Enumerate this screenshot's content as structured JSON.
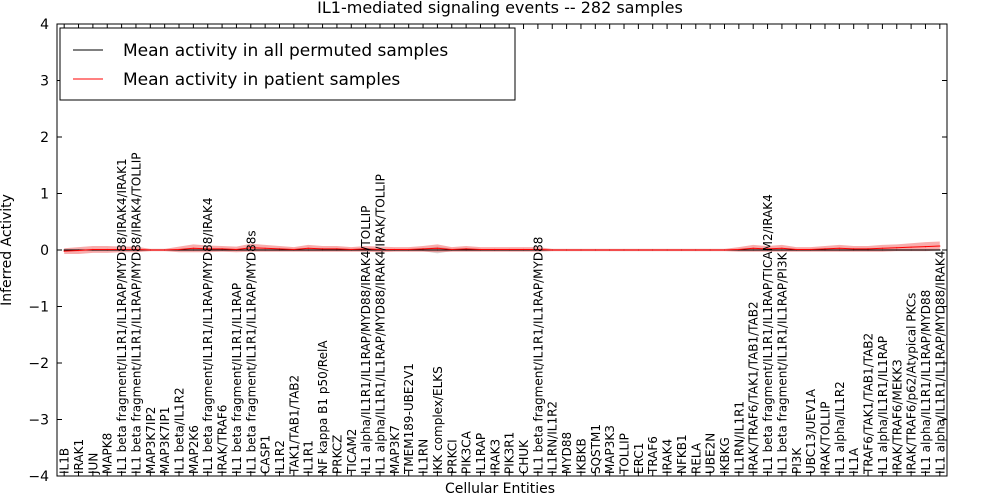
{
  "chart_data": {
    "type": "line",
    "title": "IL1-mediated signaling events -- 282 samples",
    "xlabel": "Cellular Entities",
    "ylabel": "Inferred Activity",
    "ylim": [
      -4,
      4
    ],
    "yticks": [
      -4,
      -3,
      -2,
      -1,
      0,
      1,
      2,
      3,
      4
    ],
    "ytick_labels": [
      "−4",
      "−3",
      "−2",
      "−1",
      "0",
      "1",
      "2",
      "3",
      "4"
    ],
    "legend": {
      "placement": "top-left",
      "entries": [
        {
          "label": "Mean activity in all permuted samples",
          "color": "#000000"
        },
        {
          "label": "Mean activity in patient samples",
          "color": "#ff0000"
        }
      ]
    },
    "categories": [
      "IL1B",
      "IRAK1",
      "JUN",
      "MAPK8",
      "IL1 beta fragment/IL1R1/IL1RAP/MYD88/IRAK4/IRAK1",
      "IL1 beta fragment/IL1R1/IL1RAP/MYD88/IRAK4/TOLLIP",
      "MAP3K7IP2",
      "MAP3K7IP1",
      "IL1 beta/IL1R2",
      "MAP2K6",
      "IL1 beta fragment/IL1R1/IL1RAP/MYD88/IRAK4",
      "IRAK/TRAF6",
      "IL1 beta fragment/IL1R1/IL1RAP",
      "IL1 beta fragment/IL1R1/IL1RAP/MYD88s",
      "CASP1",
      "IL1R2",
      "TAK1/TAB1/TAB2",
      "IL1R1",
      "NF kappa B1 p50/RelA",
      "PRKCZ",
      "TICAM2",
      "IL1 alpha/IL1R1/IL1RAP/MYD88/IRAK4/TOLLIP",
      "IL1 alpha/IL1R1/IL1RAP/MYD88/IRAK4/IRAK/TOLLIP",
      "MAP3K7",
      "TMEM189-UBE2V1",
      "IL1RN",
      "IKK complex/ELKS",
      "PRKCI",
      "PIK3CA",
      "IL1RAP",
      "IRAK3",
      "PIK3R1",
      "CHUK",
      "IL1 beta fragment/IL1R1/IL1RAP/MYD88",
      "IL1RN/IL1R2",
      "MYD88",
      "IKBKB",
      "SQSTM1",
      "MAP3K3",
      "TOLLIP",
      "ERC1",
      "TRAF6",
      "IRAK4",
      "NFKB1",
      "RELA",
      "UBE2N",
      "IKBKG",
      "IL1RN/IL1R1",
      "IRAK/TRAF6/TAK1/TAB1/TAB2",
      "IL1 beta fragment/IL1R1/IL1RAP/TICAM2/IRAK4",
      "IL1 beta fragment/IL1R1/IL1RAP/PI3K",
      "PI3K",
      "UBC13/UEV1A",
      "IRAK/TOLLIP",
      "IL1 alpha/IL1R2",
      "IL1A",
      "TRAF6/TAK1/TAB1/TAB2",
      "IL1 alpha/IL1R1/IL1RAP",
      "IRAK/TRAF6/MEKK3",
      "IRAK/TRAF6/p62/Atypical PKCs",
      "IL1 alpha/IL1R1/IL1RAP/MYD88",
      "IL1 alpha/IL1R1/IL1RAP/MYD88/IRAK4"
    ],
    "series": [
      {
        "name": "Mean activity in all permuted samples",
        "color": "#000000",
        "values": [
          0,
          0,
          0,
          0,
          0,
          0,
          0,
          0,
          0,
          0,
          0,
          0,
          0,
          0,
          0,
          0,
          0,
          0,
          0,
          0,
          0,
          0,
          0,
          0,
          0,
          0,
          0,
          0,
          0,
          0,
          0,
          0,
          0,
          0,
          0,
          0,
          0,
          0,
          0,
          0,
          0,
          0,
          0,
          0,
          0,
          0,
          0,
          0,
          0,
          0,
          0,
          0,
          0,
          0,
          0,
          0,
          0,
          0,
          0,
          0,
          0,
          0
        ],
        "band": [
          0.02,
          0.02,
          0.02,
          0.02,
          0.02,
          0.02,
          0.02,
          0.02,
          0.02,
          0.02,
          0.02,
          0.02,
          0.02,
          0.02,
          0.02,
          0.02,
          0.02,
          0.02,
          0.02,
          0.02,
          0.02,
          0.02,
          0.02,
          0.02,
          0.02,
          0.02,
          0.06,
          0.02,
          0.02,
          0.02,
          0.02,
          0.02,
          0.02,
          0.02,
          0.02,
          0.02,
          0.02,
          0.02,
          0.02,
          0.02,
          0.02,
          0.02,
          0.02,
          0.02,
          0.02,
          0.02,
          0.02,
          0.02,
          0.02,
          0.02,
          0.02,
          0.02,
          0.02,
          0.02,
          0.02,
          0.02,
          0.02,
          0.02,
          0.02,
          0.02,
          0.02,
          0.02
        ]
      },
      {
        "name": "Mean activity in patient samples",
        "color": "#ff0000",
        "values": [
          -0.02,
          -0.01,
          0.01,
          0.01,
          0.01,
          0.01,
          0.0,
          0.0,
          0.01,
          0.03,
          0.02,
          0.02,
          0.01,
          0.04,
          0.03,
          0.02,
          0.01,
          0.03,
          0.02,
          0.02,
          0.01,
          0.02,
          0.01,
          0.01,
          0.01,
          0.02,
          0.03,
          0.01,
          0.02,
          0.01,
          0.01,
          0.01,
          0.01,
          0.01,
          0.0,
          0.0,
          0.0,
          0.0,
          0.0,
          0.0,
          0.0,
          0.0,
          0.0,
          0.0,
          0.0,
          0.0,
          0.0,
          0.01,
          0.03,
          0.02,
          0.03,
          0.01,
          0.01,
          0.02,
          0.03,
          0.02,
          0.02,
          0.03,
          0.04,
          0.05,
          0.06,
          0.07
        ],
        "band": [
          0.05,
          0.06,
          0.06,
          0.06,
          0.05,
          0.05,
          0.02,
          0.02,
          0.05,
          0.07,
          0.06,
          0.05,
          0.05,
          0.07,
          0.06,
          0.05,
          0.04,
          0.06,
          0.05,
          0.05,
          0.04,
          0.05,
          0.05,
          0.04,
          0.04,
          0.05,
          0.07,
          0.04,
          0.05,
          0.04,
          0.04,
          0.04,
          0.04,
          0.04,
          0.02,
          0.02,
          0.02,
          0.02,
          0.02,
          0.02,
          0.02,
          0.02,
          0.02,
          0.02,
          0.02,
          0.02,
          0.02,
          0.04,
          0.06,
          0.05,
          0.06,
          0.04,
          0.04,
          0.05,
          0.06,
          0.05,
          0.05,
          0.06,
          0.06,
          0.07,
          0.08,
          0.08
        ]
      }
    ]
  }
}
